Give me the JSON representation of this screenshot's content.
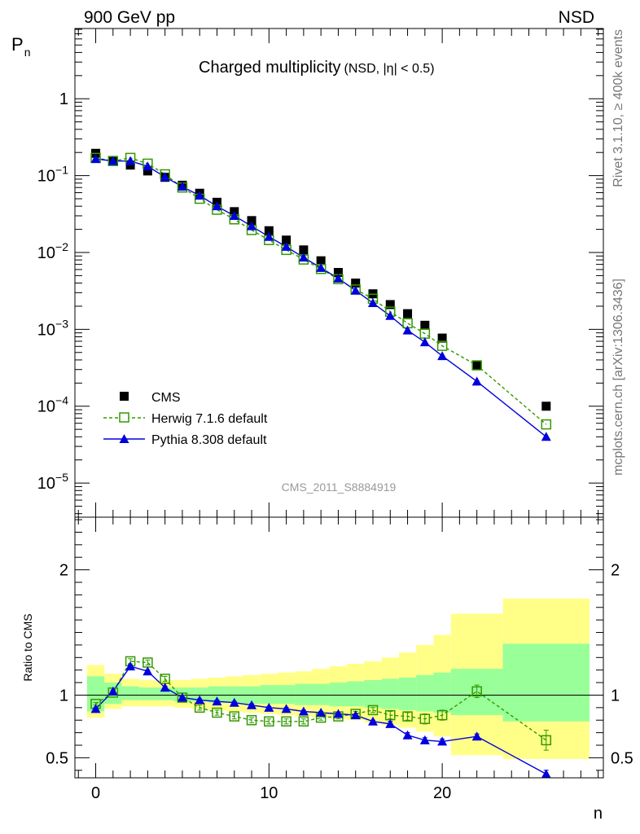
{
  "header": {
    "left": "900 GeV pp",
    "right": "NSD"
  },
  "side_labels": {
    "top": "Rivet 3.1.10, ≥ 400k events",
    "bottom": "mcplots.cern.ch [arXiv:1306.3436]"
  },
  "chart_data": [
    {
      "type": "scatter",
      "title": "Charged multiplicity",
      "subtitle": "(NSD, |η| < 0.5)",
      "ylabel": "P",
      "ylabel_sub": "n",
      "yscale": "log",
      "xlim": [
        -1.2,
        29.3
      ],
      "ylim": [
        3.6e-06,
        8.2
      ],
      "yticks": [
        {
          "value": 1e-05,
          "base": "10",
          "exp": "−5"
        },
        {
          "value": 0.0001,
          "base": "10",
          "exp": "−4"
        },
        {
          "value": 0.001,
          "base": "10",
          "exp": "−3"
        },
        {
          "value": 0.01,
          "base": "10",
          "exp": "−2"
        },
        {
          "value": 0.1,
          "base": "10",
          "exp": "−1"
        },
        {
          "value": 1,
          "base": "1",
          "exp": ""
        }
      ],
      "watermark": "CMS_2011_S8884919",
      "legend_position": "lower-left",
      "series": [
        {
          "name": "CMS",
          "color": "#000000",
          "marker": "filled-square",
          "x": [
            0,
            1,
            2,
            3,
            4,
            5,
            6,
            7,
            8,
            9,
            10,
            11,
            12,
            13,
            14,
            15,
            16,
            17,
            18,
            19,
            20,
            22,
            26
          ],
          "y": [
            0.195,
            0.155,
            0.137,
            0.115,
            0.095,
            0.075,
            0.059,
            0.045,
            0.034,
            0.026,
            0.0192,
            0.0145,
            0.0108,
            0.0078,
            0.0055,
            0.004,
            0.0029,
            0.0021,
            0.0016,
            0.00113,
            0.00077,
            0.00034,
            0.0001
          ]
        },
        {
          "name": "Herwig 7.1.6 default",
          "color": "#339900",
          "marker": "open-square",
          "line": "dashed",
          "x": [
            0,
            1,
            2,
            3,
            4,
            5,
            6,
            7,
            8,
            9,
            10,
            11,
            12,
            13,
            14,
            15,
            16,
            17,
            18,
            19,
            20,
            22,
            26
          ],
          "y": [
            0.17,
            0.155,
            0.17,
            0.143,
            0.104,
            0.07,
            0.05,
            0.036,
            0.027,
            0.0196,
            0.0145,
            0.0108,
            0.0081,
            0.0061,
            0.0045,
            0.0033,
            0.0025,
            0.0017,
            0.0012,
            0.00088,
            0.00061,
            0.00034,
            5.8e-05
          ]
        },
        {
          "name": "Pythia 8.308 default",
          "color": "#0000dd",
          "marker": "filled-triangle",
          "line": "solid",
          "x": [
            0,
            1,
            2,
            3,
            4,
            5,
            6,
            7,
            8,
            9,
            10,
            11,
            12,
            13,
            14,
            15,
            16,
            17,
            18,
            19,
            20,
            22,
            26
          ],
          "y": [
            0.165,
            0.155,
            0.155,
            0.132,
            0.096,
            0.072,
            0.055,
            0.04,
            0.03,
            0.022,
            0.016,
            0.0119,
            0.0086,
            0.0063,
            0.0046,
            0.0032,
            0.0022,
            0.0015,
            0.00097,
            0.00068,
            0.00045,
            0.00021,
            4e-05
          ]
        }
      ]
    },
    {
      "type": "scatter",
      "ylabel": "Ratio to CMS",
      "xlabel": "n",
      "xlim": [
        -1.2,
        29.3
      ],
      "ylim": [
        0.34,
        2.42
      ],
      "xticks": [
        0,
        10,
        20
      ],
      "yticks": [
        0.5,
        1,
        2
      ],
      "reference": 1,
      "band_edges": [
        -0.5,
        0.5,
        1.5,
        2.5,
        3.5,
        4.5,
        5.5,
        6.5,
        7.5,
        8.5,
        9.5,
        10.5,
        11.5,
        12.5,
        13.5,
        14.5,
        15.5,
        16.5,
        17.5,
        18.5,
        19.5,
        20.5,
        23.5,
        28.5
      ],
      "band_stat_sys": {
        "color": "#ffff88",
        "low": [
          0.82,
          0.89,
          0.91,
          0.91,
          0.91,
          0.9,
          0.89,
          0.88,
          0.87,
          0.86,
          0.85,
          0.84,
          0.83,
          0.82,
          0.81,
          0.8,
          0.78,
          0.76,
          0.74,
          0.71,
          0.67,
          0.52,
          0.49
        ],
        "high": [
          1.24,
          1.17,
          1.13,
          1.12,
          1.12,
          1.12,
          1.13,
          1.14,
          1.15,
          1.16,
          1.17,
          1.18,
          1.19,
          1.21,
          1.23,
          1.25,
          1.27,
          1.3,
          1.34,
          1.4,
          1.48,
          1.65,
          1.77
        ]
      },
      "band_stat": {
        "color": "#99ff99",
        "low": [
          0.87,
          0.93,
          0.96,
          0.96,
          0.96,
          0.95,
          0.95,
          0.94,
          0.94,
          0.93,
          0.93,
          0.93,
          0.92,
          0.92,
          0.91,
          0.91,
          0.9,
          0.89,
          0.88,
          0.87,
          0.86,
          0.84,
          0.79
        ],
        "high": [
          1.15,
          1.1,
          1.07,
          1.06,
          1.06,
          1.06,
          1.06,
          1.07,
          1.07,
          1.07,
          1.08,
          1.08,
          1.09,
          1.09,
          1.1,
          1.11,
          1.12,
          1.13,
          1.14,
          1.16,
          1.18,
          1.21,
          1.41
        ]
      },
      "series": [
        {
          "name": "Herwig 7.1.6 default",
          "color": "#339900",
          "marker": "open-square",
          "line": "dashed",
          "x": [
            0,
            1,
            2,
            3,
            4,
            5,
            6,
            7,
            8,
            9,
            10,
            11,
            12,
            13,
            14,
            15,
            16,
            17,
            18,
            19,
            20,
            22,
            26
          ],
          "y": [
            0.93,
            1.02,
            1.27,
            1.26,
            1.13,
            0.98,
            0.9,
            0.86,
            0.83,
            0.8,
            0.79,
            0.79,
            0.79,
            0.82,
            0.83,
            0.85,
            0.88,
            0.84,
            0.83,
            0.81,
            0.84,
            1.03,
            0.64
          ],
          "err": [
            0.01,
            0.01,
            0.02,
            0.02,
            0.02,
            0.02,
            0.02,
            0.02,
            0.02,
            0.02,
            0.02,
            0.02,
            0.02,
            0.02,
            0.02,
            0.02,
            0.02,
            0.03,
            0.03,
            0.04,
            0.04,
            0.05,
            0.08
          ]
        },
        {
          "name": "Pythia 8.308 default",
          "color": "#0000dd",
          "marker": "filled-triangle",
          "line": "solid",
          "x": [
            0,
            1,
            2,
            3,
            4,
            5,
            6,
            7,
            8,
            9,
            10,
            11,
            12,
            13,
            14,
            15,
            16,
            17,
            18,
            19,
            20,
            22,
            26
          ],
          "y": [
            0.89,
            1.03,
            1.23,
            1.19,
            1.06,
            0.98,
            0.96,
            0.95,
            0.94,
            0.92,
            0.9,
            0.89,
            0.87,
            0.86,
            0.85,
            0.84,
            0.79,
            0.77,
            0.68,
            0.64,
            0.63,
            0.67,
            0.37
          ],
          "err": [
            0.01,
            0.01,
            0.01,
            0.01,
            0.01,
            0.01,
            0.01,
            0.01,
            0.01,
            0.01,
            0.01,
            0.01,
            0.01,
            0.01,
            0.01,
            0.01,
            0.01,
            0.02,
            0.02,
            0.02,
            0.02,
            0.02,
            0.03
          ]
        }
      ]
    }
  ]
}
